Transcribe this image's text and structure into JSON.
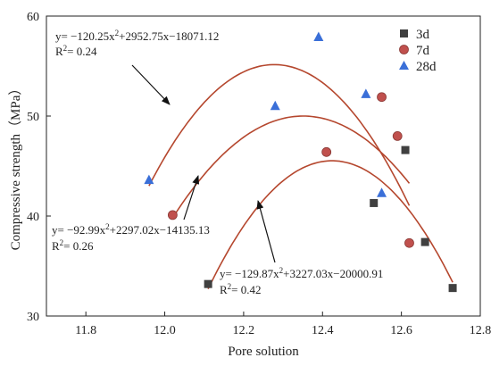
{
  "chart_data": {
    "type": "scatter",
    "xlabel": "Pore solution",
    "ylabel": "Compressive strength（MPa）",
    "xlim": [
      11.7,
      12.8
    ],
    "ylim": [
      30,
      60
    ],
    "xticks": [
      "11.8",
      "12.0",
      "12.2",
      "12.4",
      "12.6",
      "12.8"
    ],
    "yticks": [
      "30",
      "40",
      "50",
      "60"
    ],
    "legend_position": "top-right",
    "series": [
      {
        "name": "3d",
        "marker": "square",
        "color": "#404040",
        "x": [
          12.11,
          12.53,
          12.61,
          12.66,
          12.73
        ],
        "y": [
          33.2,
          41.3,
          46.6,
          37.4,
          32.8
        ],
        "fit": {
          "a": -129.87,
          "b": 3227.03,
          "c": -20000.91,
          "x_range": [
            12.11,
            12.73
          ]
        },
        "equation": "y= −129.87x",
        "equation_tail": "+3227.03x−20000.91",
        "r2_prefix": "R",
        "r2_value": "= 0.42"
      },
      {
        "name": "7d",
        "marker": "circle",
        "color": "#c0504d",
        "x": [
          12.02,
          12.41,
          12.55,
          12.59,
          12.62
        ],
        "y": [
          40.1,
          46.4,
          51.9,
          48.0,
          37.3
        ],
        "fit": {
          "a": -92.99,
          "b": 2297.02,
          "c": -14135.13,
          "x_range": [
            12.02,
            12.62
          ]
        },
        "equation": "y= −92.99x",
        "equation_tail": "+2297.02x−14135.13",
        "r2_prefix": "R",
        "r2_value": "= 0.26"
      },
      {
        "name": "28d",
        "marker": "triangle",
        "color": "#3a6fd8",
        "x": [
          11.96,
          12.28,
          12.39,
          12.51,
          12.55
        ],
        "y": [
          43.6,
          51.0,
          57.9,
          52.2,
          42.3
        ],
        "fit": {
          "a": -120.25,
          "b": 2952.75,
          "c": -18071.12,
          "x_range": [
            11.96,
            12.62
          ]
        },
        "equation": "y= −120.25x",
        "equation_tail": "+2952.75x−18071.12",
        "r2_prefix": "R",
        "r2_value": "= 0.24"
      }
    ],
    "annotation_exponent": "2",
    "fit_color": "#b5472e"
  }
}
